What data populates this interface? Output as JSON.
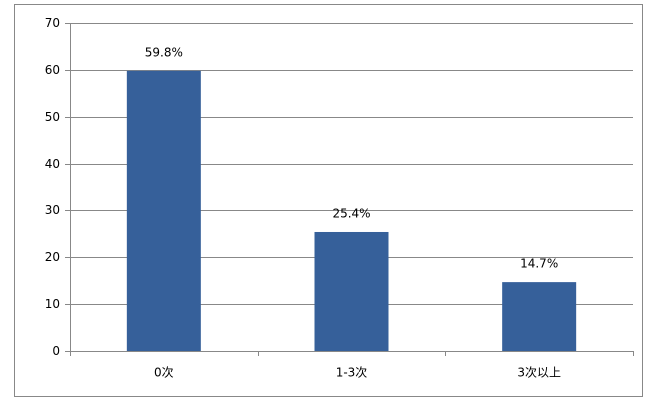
{
  "chart_data": {
    "type": "bar",
    "categories": [
      "0次",
      "1-3次",
      "3次以上"
    ],
    "values": [
      59.8,
      25.4,
      14.7
    ],
    "value_labels": [
      "59.8%",
      "25.4%",
      "14.7%"
    ],
    "color": "#36609a",
    "ylim": [
      0,
      70
    ],
    "yticks": [
      0,
      10,
      20,
      30,
      40,
      50,
      60,
      70
    ],
    "grid": true
  }
}
